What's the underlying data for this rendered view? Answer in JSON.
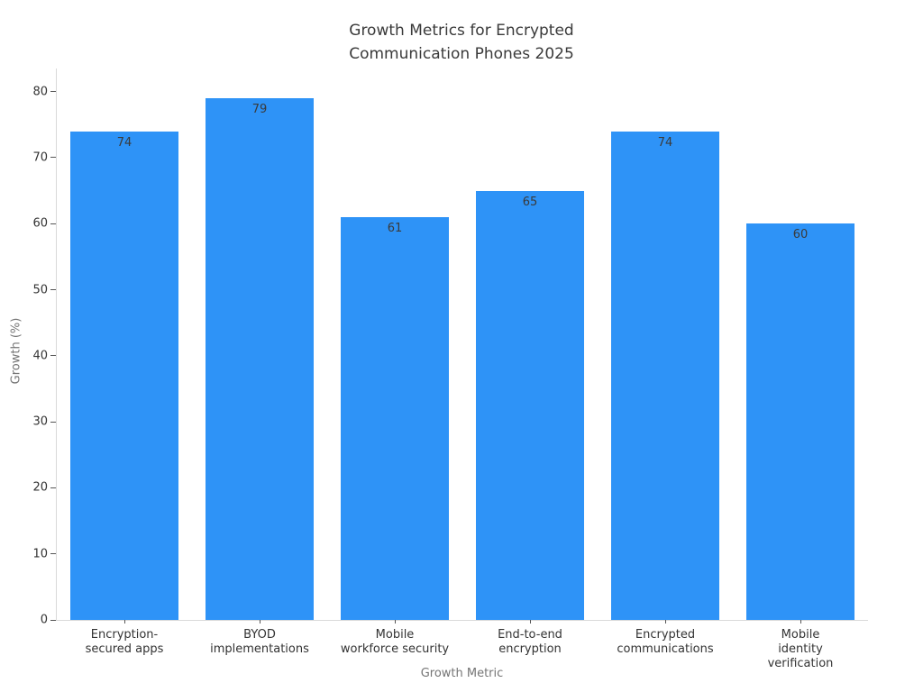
{
  "chart_data": {
    "type": "bar",
    "title": "Growth Metrics for Encrypted\nCommunication Phones 2025",
    "xlabel": "Growth Metric",
    "ylabel": "Growth (%)",
    "categories": [
      "Encryption-\nsecured apps",
      "BYOD\nimplementations",
      "Mobile\nworkforce security",
      "End-to-end\nencryption",
      "Encrypted\ncommunications",
      "Mobile identity\nverification"
    ],
    "values": [
      74,
      79,
      61,
      65,
      74,
      60
    ],
    "value_labels": [
      "74",
      "79",
      "61",
      "65",
      "74",
      "60"
    ],
    "yticks": [
      0,
      10,
      20,
      30,
      40,
      50,
      60,
      70,
      80
    ],
    "ytick_labels": [
      "0",
      "10",
      "20",
      "30",
      "40",
      "50",
      "60",
      "70",
      "80"
    ],
    "ylim": [
      0,
      83.5
    ],
    "grid": false,
    "legend": false,
    "bar_width_fraction": 0.8,
    "colors": {
      "bar": "#2E93F7",
      "title_text": "#3a3a3a",
      "tick_text": "#333333",
      "axis_title_text": "#757575",
      "axis_line": "#d9d9d9",
      "tick_mark": "#555555",
      "value_label_text": "#3a3a3a",
      "background": "#ffffff"
    }
  }
}
